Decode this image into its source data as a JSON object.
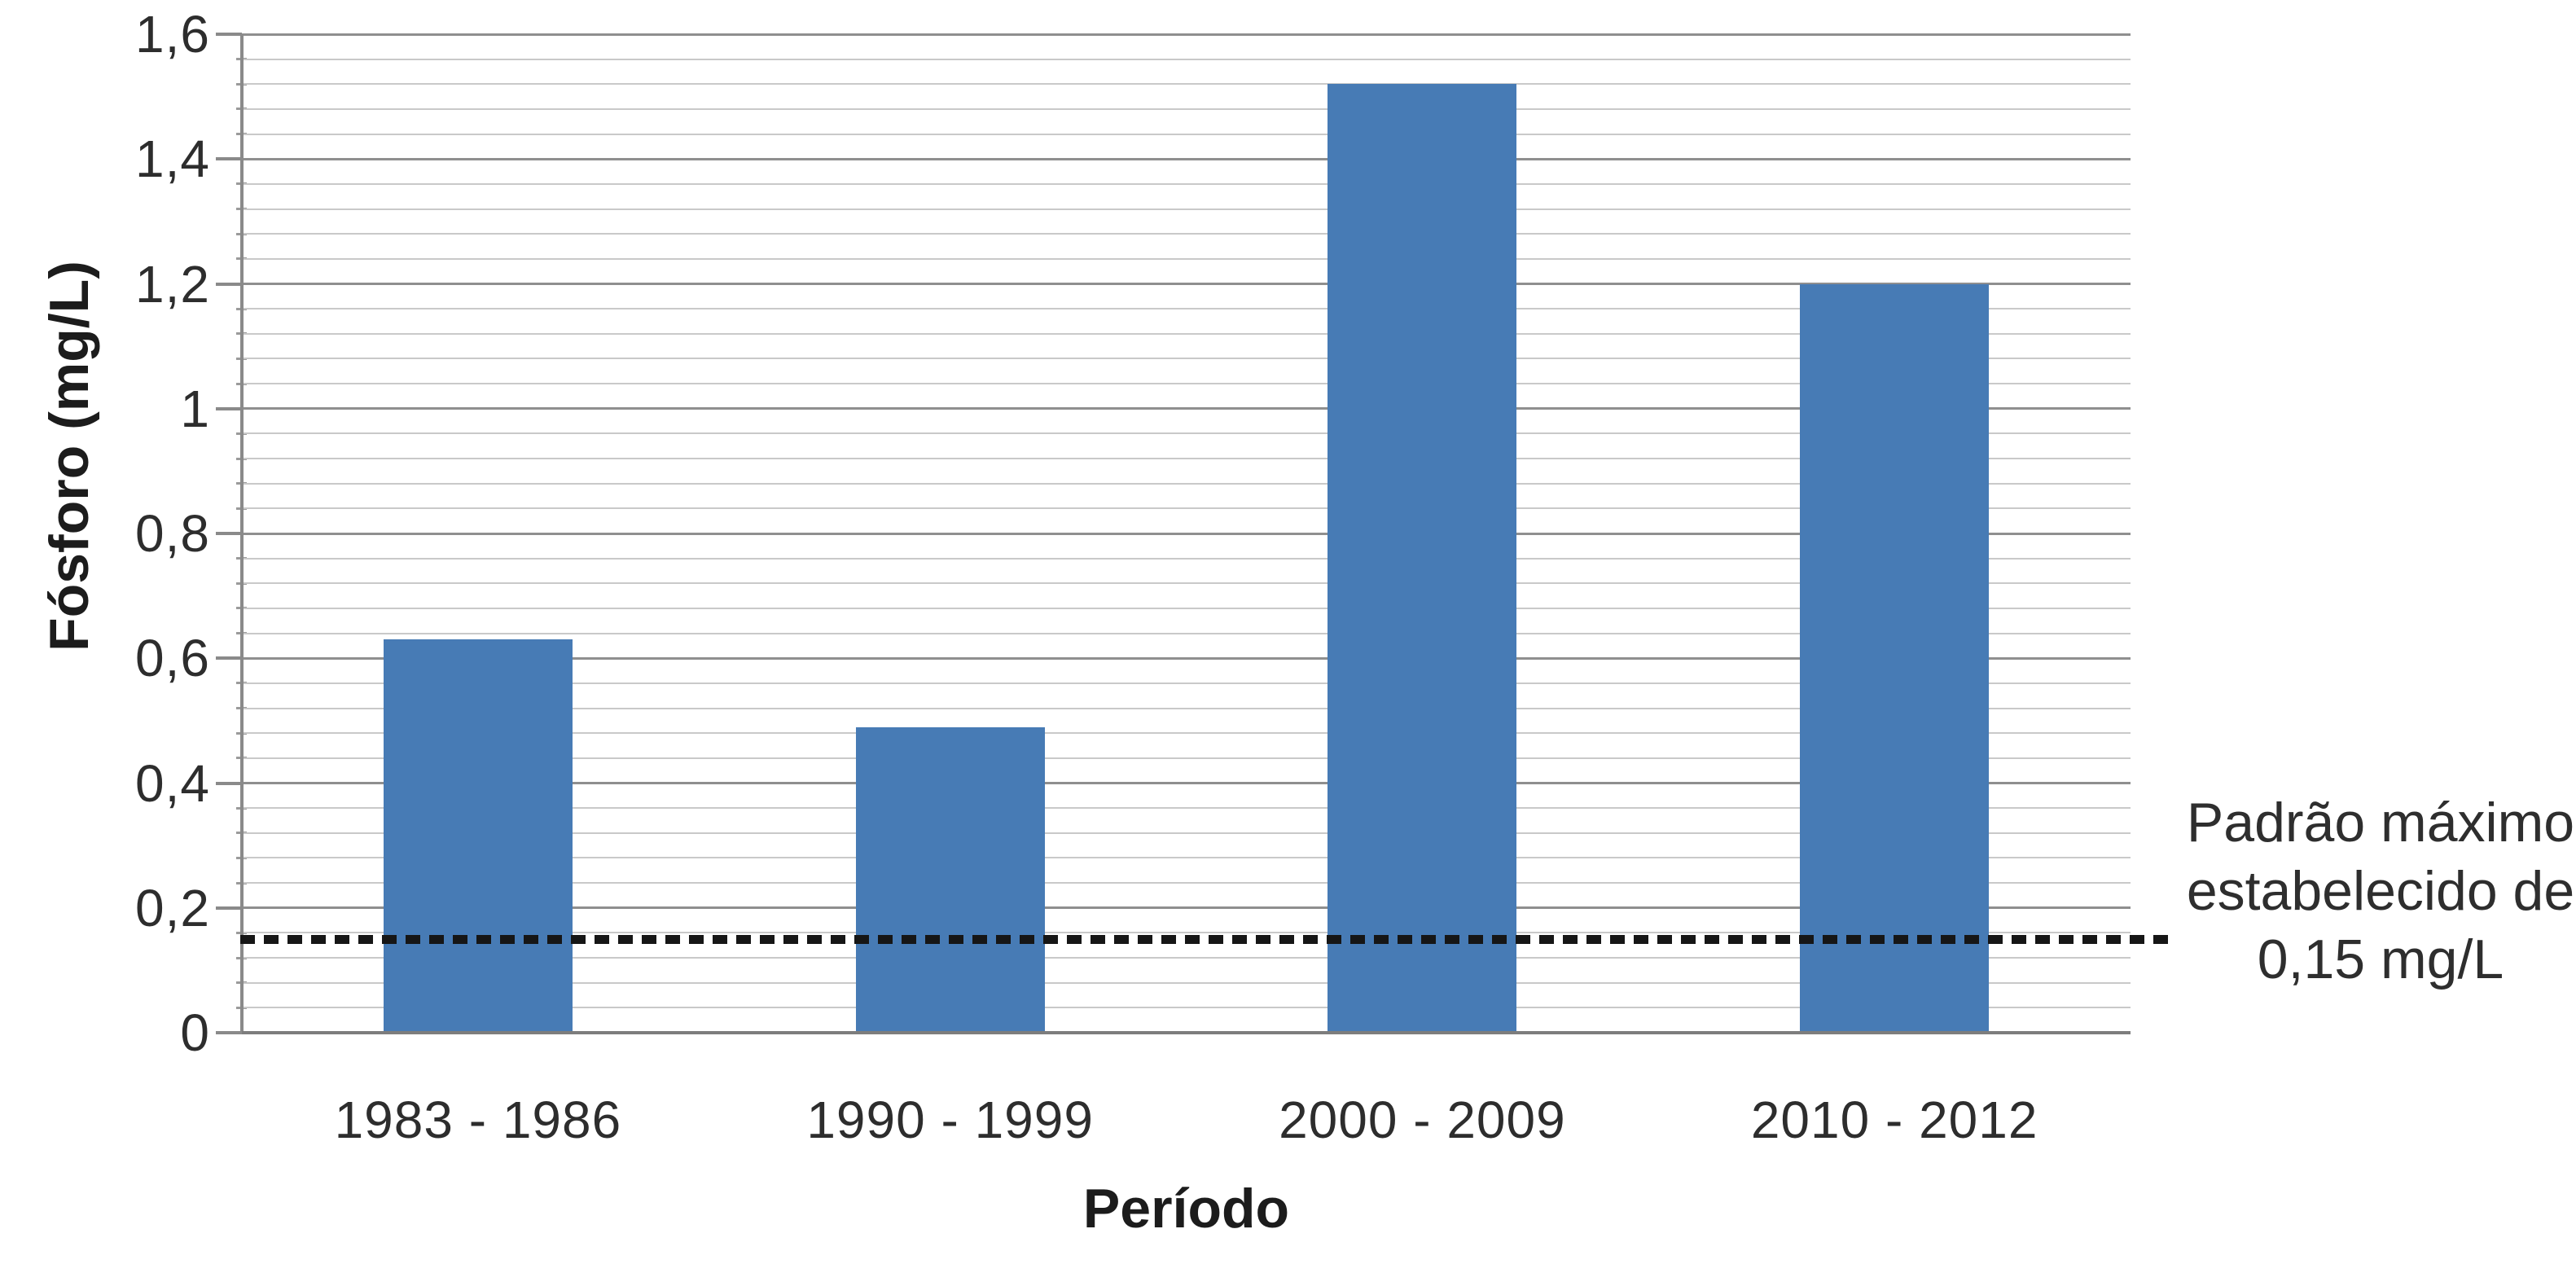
{
  "chart_data": {
    "type": "bar",
    "categories": [
      "1983 - 1986",
      "1990 - 1999",
      "2000 - 2009",
      "2010 - 2012"
    ],
    "values": [
      0.63,
      0.49,
      1.52,
      1.2
    ],
    "series_name": "Fósforo",
    "xlabel": "Período",
    "ylabel": "Fósforo (mg/L)",
    "ylim": [
      0,
      1.6
    ],
    "ytick_step": 0.2,
    "minor_gridline_step": 0.04,
    "yticks": [
      {
        "v": 0.0,
        "label": "0"
      },
      {
        "v": 0.2,
        "label": "0,2"
      },
      {
        "v": 0.4,
        "label": "0,4"
      },
      {
        "v": 0.6,
        "label": "0,6"
      },
      {
        "v": 0.8,
        "label": "0,8"
      },
      {
        "v": 1.0,
        "label": "1"
      },
      {
        "v": 1.2,
        "label": "1,2"
      },
      {
        "v": 1.4,
        "label": "1,4"
      },
      {
        "v": 1.6,
        "label": "1,6"
      }
    ],
    "grid": {
      "major_color": "#8f8f8f",
      "minor_color": "#c9c9c9"
    },
    "bar_color": "#477BB5",
    "threshold": {
      "value": 0.15,
      "line_color": "#161616",
      "label_lines": [
        "Padrão máximo",
        "estabelecido de",
        "0,15 mg/L"
      ]
    },
    "legend_position": "none"
  }
}
